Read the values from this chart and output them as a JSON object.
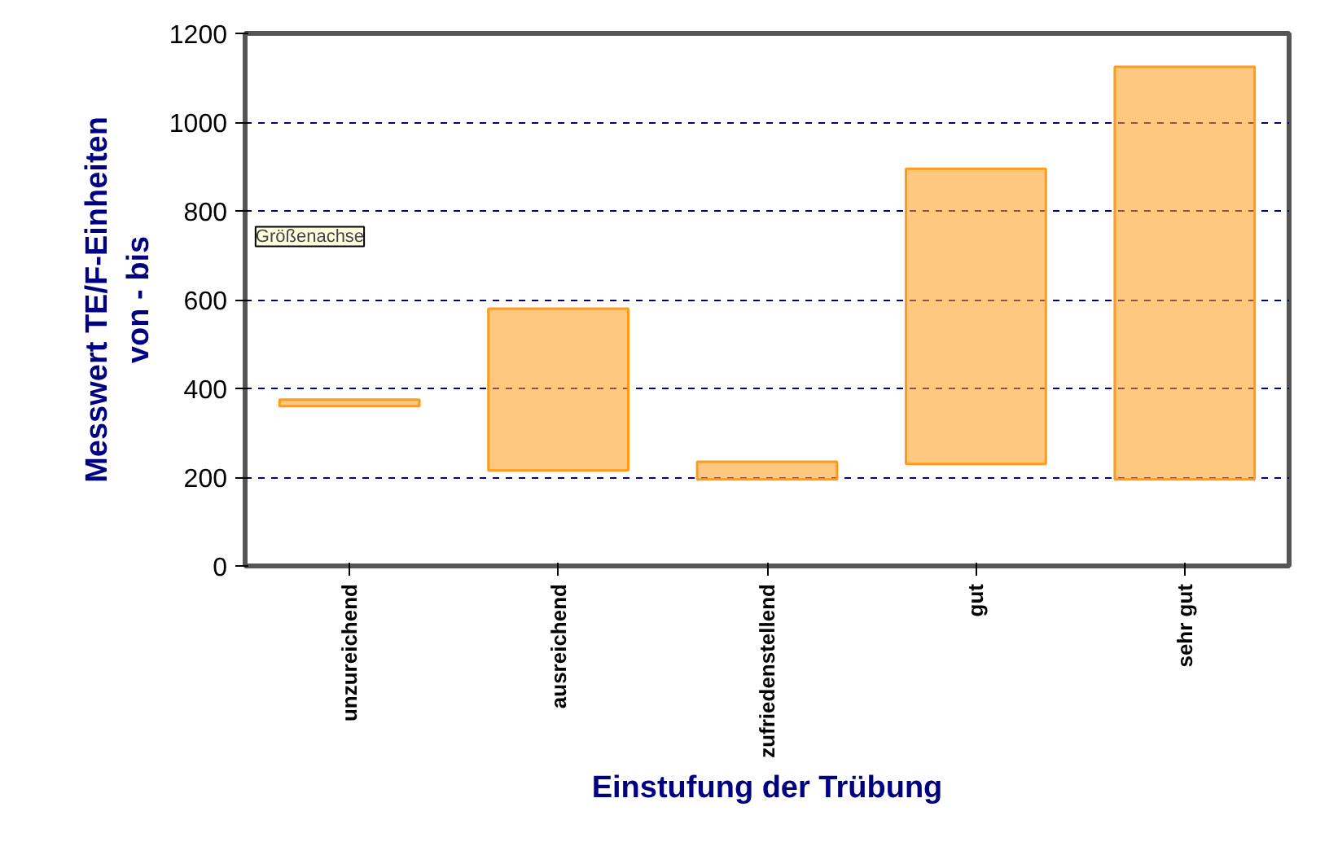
{
  "chart_data": {
    "type": "bar",
    "categories": [
      "unzureichend",
      "ausreichend",
      "zufriedenstellend",
      "gut",
      "sehr gut"
    ],
    "base": [
      360,
      215,
      195,
      230,
      195
    ],
    "values": [
      15,
      365,
      40,
      665,
      930
    ],
    "color": "#ff9a1a",
    "xlabel": "Einstufung der Trübung",
    "ylabel": "Messwert TE/F-Einheiten\nvon - bis",
    "ylim": [
      0,
      1200
    ],
    "yticks": [
      0,
      200,
      400,
      600,
      800,
      1000,
      1200
    ],
    "grid": "y",
    "annotations": [
      "Größenachse"
    ]
  }
}
